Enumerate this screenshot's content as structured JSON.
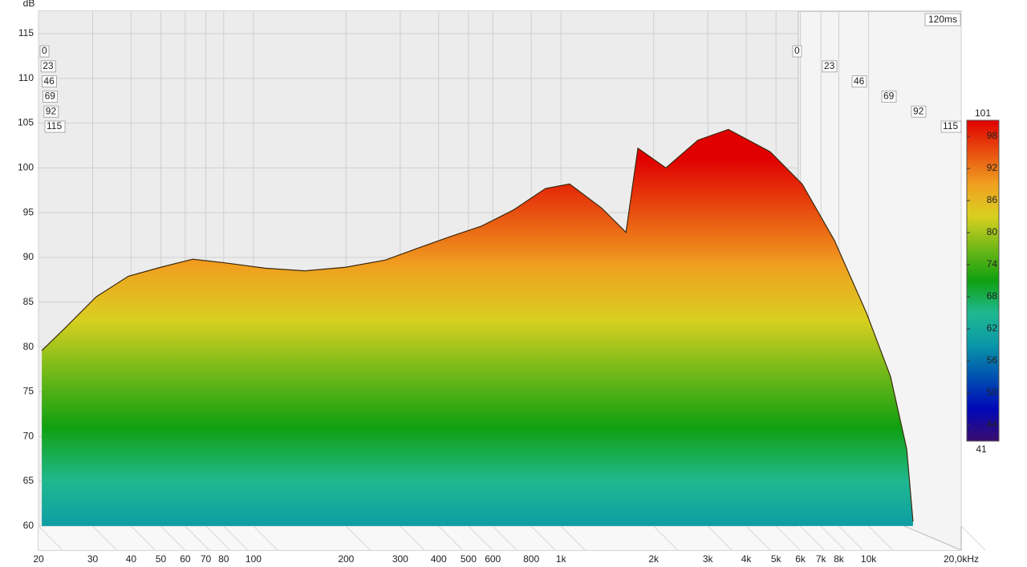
{
  "chart_data": {
    "type": "waterfall",
    "y_unit": "dB",
    "time_label": "120ms",
    "x": [
      20.5,
      24.2,
      30.8,
      39.2,
      49.9,
      63.4,
      80.6,
      109,
      147,
      199,
      268,
      340,
      434,
      551,
      700,
      890,
      1066,
      1356,
      1626,
      1778,
      2192,
      2787,
      3500,
      4786,
      6081,
      7740,
      9840,
      11780,
      13300,
      13940
    ],
    "values": [
      79.6,
      82.0,
      85.6,
      87.9,
      88.9,
      89.8,
      89.4,
      88.8,
      88.5,
      88.9,
      89.7,
      91.0,
      92.3,
      93.5,
      95.3,
      97.7,
      98.2,
      95.5,
      92.8,
      102.2,
      100.0,
      103.1,
      104.3,
      101.8,
      98.2,
      91.9,
      83.8,
      76.7,
      68.6,
      60.5
    ],
    "xlim": [
      20,
      20000
    ],
    "xscale": "log",
    "xticks": [
      20,
      30,
      40,
      50,
      60,
      70,
      80,
      100,
      200,
      300,
      400,
      500,
      600,
      800,
      {
        "value": 1000,
        "label": "1k"
      },
      {
        "value": 2000,
        "label": "2k"
      },
      {
        "value": 3000,
        "label": "3k"
      },
      {
        "value": 4000,
        "label": "4k"
      },
      {
        "value": 5000,
        "label": "5k"
      },
      {
        "value": 6000,
        "label": "6k"
      },
      {
        "value": 7000,
        "label": "7k"
      },
      {
        "value": 8000,
        "label": "8k"
      },
      {
        "value": 10000,
        "label": "10k"
      },
      {
        "value": 20000,
        "label": "20,0kHz"
      }
    ],
    "ylim": [
      57.3,
      117.5
    ],
    "yticks": [
      60,
      65,
      70,
      75,
      80,
      85,
      90,
      95,
      100,
      105,
      110,
      115
    ],
    "zticks": [
      0,
      23,
      46,
      69,
      92,
      115
    ],
    "colorscale": {
      "range": [
        41,
        101
      ],
      "ticks": [
        44,
        50,
        56,
        62,
        68,
        74,
        80,
        86,
        92,
        98
      ],
      "colors": [
        "#3a0d6e",
        "#0008b8",
        "#0050b0",
        "#0a98a8",
        "#20b890",
        "#10a010",
        "#70b818",
        "#d8d020",
        "#f0a020",
        "#e85010",
        "#e00000"
      ]
    },
    "grid": true
  }
}
